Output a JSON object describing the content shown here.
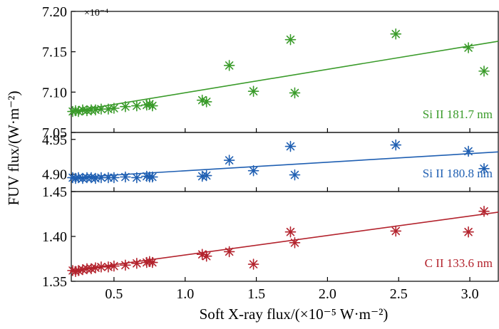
{
  "chart_data": {
    "type": "scatter",
    "ylabel": "FUV flux/(W·m⁻²)",
    "xlabel": "Soft X-ray flux/(×10⁻⁵ W·m⁻²)",
    "multiplier": "×10⁻⁴",
    "xlim": [
      0.2,
      3.2
    ],
    "xticks": [
      0.5,
      1.0,
      1.5,
      2.0,
      2.5,
      3.0
    ],
    "xtick_labels": [
      "0.5",
      "1.0",
      "1.5",
      "2.0",
      "2.5",
      "3.0"
    ],
    "panels": [
      {
        "name": "Si II 181.7 nm",
        "color": "#3a9b2a",
        "ylim": [
          7.05,
          7.2
        ],
        "yticks": [
          7.05,
          7.1,
          7.15,
          7.2
        ],
        "ytick_labels": [
          "7.05",
          "7.10",
          "7.15",
          "7.20"
        ],
        "fit": {
          "x": [
            0.2,
            3.2
          ],
          "y": [
            7.076,
            7.163
          ]
        },
        "points": {
          "x": [
            0.21,
            0.23,
            0.25,
            0.28,
            0.31,
            0.34,
            0.37,
            0.41,
            0.46,
            0.5,
            0.58,
            0.66,
            0.73,
            0.75,
            0.77,
            1.12,
            1.15,
            1.31,
            1.48,
            1.74,
            1.77,
            2.48,
            2.99,
            3.1
          ],
          "y": [
            7.076,
            7.077,
            7.076,
            7.078,
            7.077,
            7.078,
            7.078,
            7.079,
            7.079,
            7.08,
            7.082,
            7.083,
            7.084,
            7.085,
            7.083,
            7.09,
            7.088,
            7.133,
            7.101,
            7.165,
            7.099,
            7.172,
            7.155,
            7.126
          ]
        }
      },
      {
        "name": "Si II 180.8 nm",
        "color": "#1f5fb2",
        "ylim": [
          4.875,
          4.96
        ],
        "yticks": [
          4.9,
          4.95
        ],
        "ytick_labels": [
          "4.90",
          "4.95"
        ],
        "fit": {
          "x": [
            0.2,
            3.2
          ],
          "y": [
            4.895,
            4.932
          ]
        },
        "points": {
          "x": [
            0.21,
            0.23,
            0.25,
            0.28,
            0.31,
            0.34,
            0.37,
            0.41,
            0.46,
            0.5,
            0.58,
            0.66,
            0.73,
            0.75,
            0.77,
            1.12,
            1.15,
            1.31,
            1.48,
            1.74,
            1.77,
            2.48,
            2.99,
            3.1
          ],
          "y": [
            4.895,
            4.894,
            4.895,
            4.894,
            4.895,
            4.895,
            4.894,
            4.895,
            4.895,
            4.895,
            4.896,
            4.895,
            4.897,
            4.896,
            4.896,
            4.897,
            4.898,
            4.92,
            4.905,
            4.94,
            4.899,
            4.942,
            4.933,
            4.908
          ]
        }
      },
      {
        "name": "C II 133.6 nm",
        "color": "#b3232d",
        "ylim": [
          1.35,
          1.45
        ],
        "yticks": [
          1.35,
          1.4,
          1.45
        ],
        "ytick_labels": [
          "1.35",
          "1.40",
          "1.45"
        ],
        "fit": {
          "x": [
            0.2,
            3.2
          ],
          "y": [
            1.362,
            1.427
          ]
        },
        "points": {
          "x": [
            0.21,
            0.23,
            0.25,
            0.28,
            0.31,
            0.34,
            0.37,
            0.41,
            0.46,
            0.5,
            0.58,
            0.66,
            0.73,
            0.75,
            0.77,
            1.12,
            1.15,
            1.31,
            1.48,
            1.74,
            1.77,
            2.48,
            2.99,
            3.1
          ],
          "y": [
            1.362,
            1.361,
            1.362,
            1.363,
            1.364,
            1.364,
            1.365,
            1.366,
            1.366,
            1.367,
            1.368,
            1.37,
            1.371,
            1.372,
            1.371,
            1.38,
            1.378,
            1.383,
            1.369,
            1.405,
            1.393,
            1.406,
            1.405,
            1.428
          ]
        }
      }
    ]
  }
}
